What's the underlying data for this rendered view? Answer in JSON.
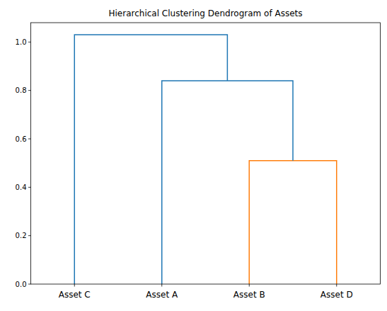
{
  "chart_data": {
    "type": "dendrogram",
    "title": "Hierarchical Clustering Dendrogram of Assets",
    "categories": [
      "Asset C",
      "Asset A",
      "Asset B",
      "Asset D"
    ],
    "links": [
      {
        "left": 2,
        "right": 3,
        "height": 0.51,
        "color": "#ff7f0e"
      },
      {
        "left": 1,
        "right": 4,
        "height": 0.84,
        "color": "#1f77b4"
      },
      {
        "left": 0,
        "right": 5,
        "height": 1.03,
        "color": "#1f77b4"
      }
    ],
    "ylim": [
      0,
      1.08
    ],
    "yticks": [
      {
        "value": 0,
        "label": "0.0"
      },
      {
        "value": 0.2,
        "label": "0.2"
      },
      {
        "value": 0.4,
        "label": "0.4"
      },
      {
        "value": 0.6,
        "label": "0.6"
      },
      {
        "value": 0.8,
        "label": "0.8"
      },
      {
        "value": 1.0,
        "label": "1.0"
      }
    ]
  }
}
